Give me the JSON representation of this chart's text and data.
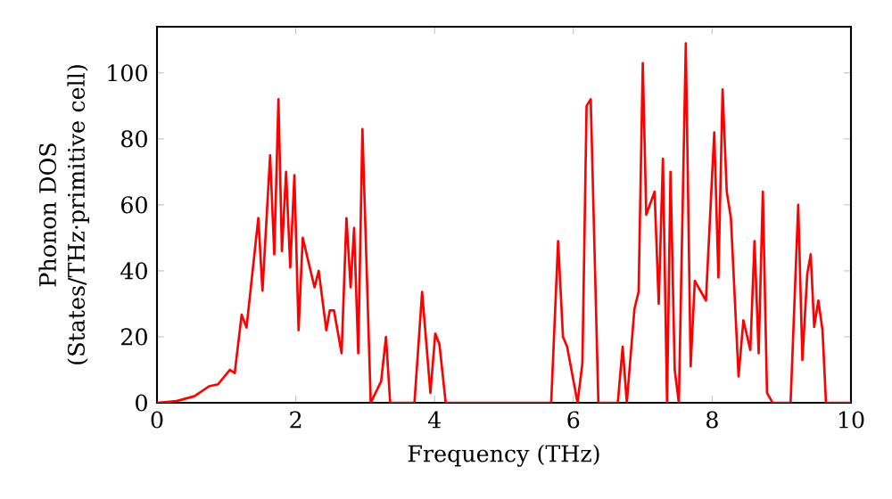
{
  "chart_data": {
    "type": "line",
    "xlabel": "Frequency (THz)",
    "ylabel": "Phonon DOS (States/THz·primitive cell)",
    "xlim": [
      0,
      10
    ],
    "ylim": [
      0,
      114
    ],
    "xticks": [
      0,
      2,
      4,
      6,
      8,
      10
    ],
    "yticks": [
      0,
      20,
      40,
      60,
      80,
      100
    ],
    "grid": false,
    "marker": "none",
    "line_style": "solid",
    "series": [
      {
        "color": "#ff0000",
        "x": [
          0,
          0.28,
          0.54,
          0.75,
          0.88,
          1.05,
          1.12,
          1.22,
          1.29,
          1.46,
          1.52,
          1.63,
          1.69,
          1.75,
          1.8,
          1.86,
          1.92,
          1.98,
          2.04,
          2.1,
          2.27,
          2.33,
          2.44,
          2.49,
          2.55,
          2.66,
          2.73,
          2.79,
          2.84,
          2.9,
          2.96,
          3.08,
          3.23,
          3.3,
          3.36,
          3.71,
          3.82,
          3.94,
          4.01,
          4.07,
          4.16,
          5.68,
          5.78,
          5.85,
          5.91,
          6.06,
          6.13,
          6.19,
          6.25,
          6.36,
          6.64,
          6.71,
          6.77,
          6.88,
          6.94,
          7.0,
          7.05,
          7.17,
          7.23,
          7.29,
          7.35,
          7.4,
          7.46,
          7.52,
          7.62,
          7.69,
          7.75,
          7.91,
          8.03,
          8.09,
          8.15,
          8.21,
          8.27,
          8.38,
          8.45,
          8.55,
          8.61,
          8.67,
          8.73,
          8.79,
          8.87,
          9.13,
          9.24,
          9.3,
          9.37,
          9.42,
          9.47,
          9.53,
          9.59,
          9.64,
          10.0
        ],
        "values": [
          0,
          0.5,
          2,
          5,
          5.6,
          10,
          9,
          26.7,
          22.8,
          56,
          34,
          75,
          45,
          92,
          46,
          70,
          41,
          69,
          22,
          50,
          35,
          40,
          22,
          28,
          28,
          15,
          56,
          35,
          53,
          15,
          83,
          0,
          6.5,
          20,
          0,
          0,
          33.6,
          3,
          21,
          17.7,
          0,
          0,
          49,
          20,
          17,
          0,
          12,
          90,
          92,
          0,
          0,
          17,
          0,
          28.5,
          33.6,
          103,
          57,
          64,
          30,
          74,
          0,
          70,
          10,
          0,
          109,
          11,
          37,
          31,
          82,
          38,
          95,
          64,
          56,
          8,
          25,
          16,
          49,
          15,
          64,
          3,
          0,
          0,
          60,
          13,
          39,
          45,
          23,
          31,
          22,
          0,
          0
        ]
      }
    ]
  }
}
